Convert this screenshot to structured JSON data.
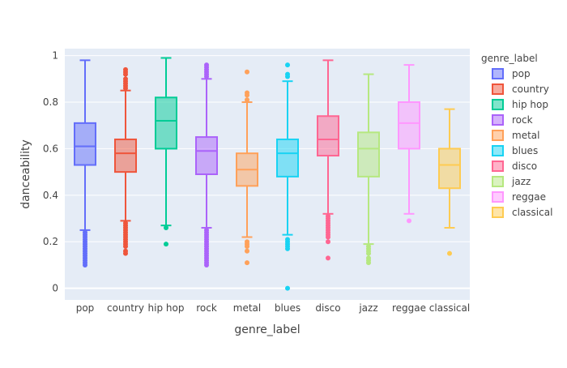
{
  "chart_data": {
    "type": "box",
    "title": "",
    "xlabel": "genre_label",
    "ylabel": "danceability",
    "ylim": [
      -0.05,
      1.03
    ],
    "yticks": [
      0,
      0.2,
      0.4,
      0.6,
      0.8,
      1
    ],
    "ytick_labels": [
      "0",
      "0.2",
      "0.4",
      "0.6",
      "0.8",
      "1"
    ],
    "grid": true,
    "legend_title": "genre_label",
    "legend_position": "right",
    "categories": [
      "pop",
      "country",
      "hip hop",
      "rock",
      "metal",
      "blues",
      "disco",
      "jazz",
      "reggae",
      "classical"
    ],
    "series": [
      {
        "name": "pop",
        "color": "#636efa",
        "min": 0.25,
        "q1": 0.53,
        "median": 0.61,
        "q3": 0.71,
        "max": 0.98,
        "outliers": [
          0.24,
          0.23,
          0.22,
          0.21,
          0.2,
          0.19,
          0.18,
          0.17,
          0.16,
          0.15,
          0.14,
          0.13,
          0.12,
          0.11,
          0.1
        ]
      },
      {
        "name": "country",
        "color": "#EF553B",
        "min": 0.29,
        "q1": 0.5,
        "median": 0.58,
        "q3": 0.64,
        "max": 0.85,
        "outliers": [
          0.94,
          0.93,
          0.92,
          0.9,
          0.89,
          0.88,
          0.87,
          0.86,
          0.28,
          0.27,
          0.26,
          0.25,
          0.24,
          0.23,
          0.22,
          0.21,
          0.2,
          0.19,
          0.18,
          0.16,
          0.15
        ]
      },
      {
        "name": "hip hop",
        "color": "#00cc96",
        "min": 0.27,
        "q1": 0.6,
        "median": 0.72,
        "q3": 0.82,
        "max": 0.99,
        "outliers": [
          0.26,
          0.19
        ]
      },
      {
        "name": "rock",
        "color": "#ab63fa",
        "min": 0.26,
        "q1": 0.49,
        "median": 0.59,
        "q3": 0.65,
        "max": 0.9,
        "outliers": [
          0.96,
          0.95,
          0.94,
          0.93,
          0.92,
          0.91,
          0.25,
          0.24,
          0.23,
          0.22,
          0.21,
          0.2,
          0.19,
          0.18,
          0.17,
          0.16,
          0.15,
          0.14,
          0.13,
          0.12,
          0.11,
          0.1
        ]
      },
      {
        "name": "metal",
        "color": "#FFA15A",
        "min": 0.22,
        "q1": 0.44,
        "median": 0.51,
        "q3": 0.58,
        "max": 0.8,
        "outliers": [
          0.93,
          0.84,
          0.83,
          0.81,
          0.2,
          0.19,
          0.18,
          0.16,
          0.11
        ]
      },
      {
        "name": "blues",
        "color": "#19d3f3",
        "min": 0.23,
        "q1": 0.48,
        "median": 0.58,
        "q3": 0.64,
        "max": 0.89,
        "outliers": [
          0.96,
          0.92,
          0.91,
          0.21,
          0.2,
          0.19,
          0.18,
          0.17,
          0.0
        ]
      },
      {
        "name": "disco",
        "color": "#FF6692",
        "min": 0.32,
        "q1": 0.57,
        "median": 0.64,
        "q3": 0.74,
        "max": 0.98,
        "outliers": [
          0.31,
          0.3,
          0.29,
          0.28,
          0.27,
          0.26,
          0.25,
          0.24,
          0.23,
          0.22,
          0.2,
          0.13
        ]
      },
      {
        "name": "jazz",
        "color": "#B6E880",
        "min": 0.19,
        "q1": 0.48,
        "median": 0.6,
        "q3": 0.67,
        "max": 0.92,
        "outliers": [
          0.18,
          0.17,
          0.16,
          0.15,
          0.13,
          0.12,
          0.11
        ]
      },
      {
        "name": "reggae",
        "color": "#FF97FF",
        "min": 0.32,
        "q1": 0.6,
        "median": 0.71,
        "q3": 0.8,
        "max": 0.96,
        "outliers": [
          0.29
        ]
      },
      {
        "name": "classical",
        "color": "#FECB52",
        "min": 0.26,
        "q1": 0.43,
        "median": 0.53,
        "q3": 0.6,
        "max": 0.77,
        "outliers": [
          0.15
        ]
      }
    ]
  }
}
